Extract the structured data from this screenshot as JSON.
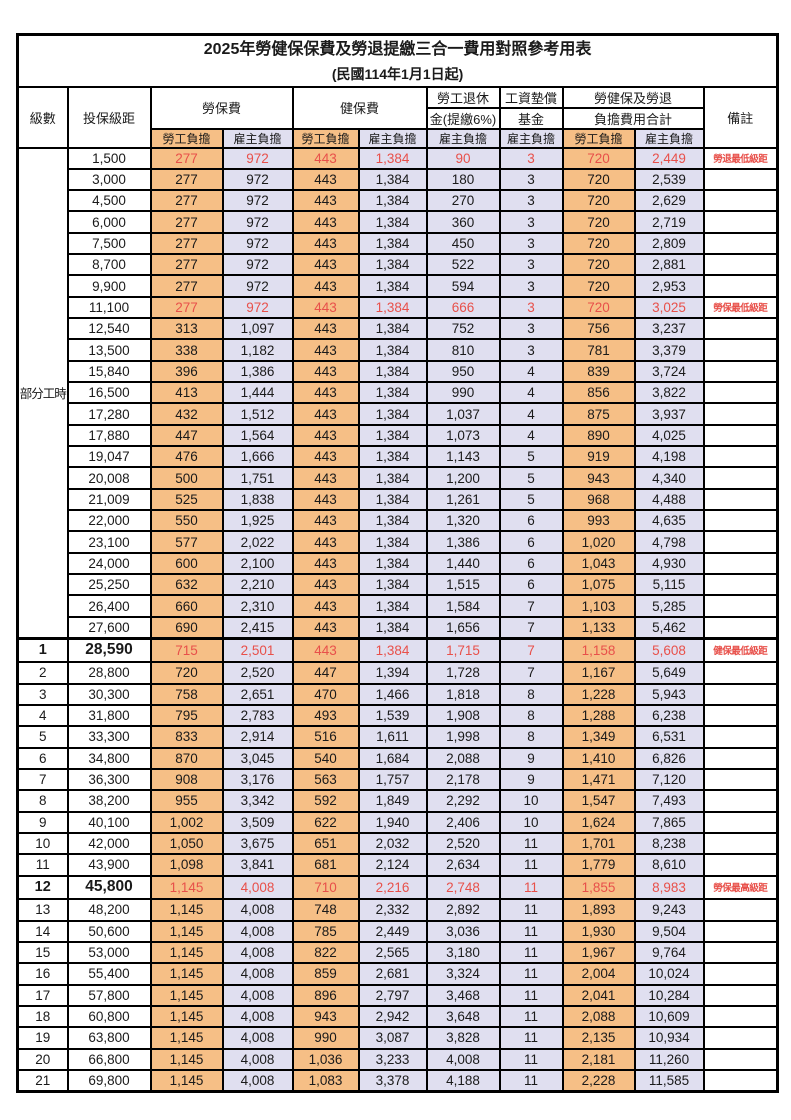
{
  "page": {
    "title": "2025年勞健保保費及勞退提繳三合一費用對照參考用表",
    "subtitle": "(民國114年1月1日起)"
  },
  "header": {
    "level": "級數",
    "bracket": "投保級距",
    "labor_insurance": "勞保費",
    "health_insurance": "健保費",
    "pension_line1": "勞工退休",
    "pension_line2": "金(提繳6%)",
    "wage_fund_line1": "工資墊償",
    "wage_fund_line2": "基金",
    "total_line1": "勞健保及勞退",
    "total_line2": "負擔費用合計",
    "remarks": "備註",
    "employee_share": "勞工負擔",
    "employer_share": "雇主負擔"
  },
  "part_time_label": "部分工時",
  "part_time_rows": [
    {
      "bracket": "1,500",
      "values": [
        "277",
        "972",
        "443",
        "1,384",
        "90",
        "3",
        "720",
        "2,449"
      ],
      "note": "勞退最低級距",
      "highlight": true
    },
    {
      "bracket": "3,000",
      "values": [
        "277",
        "972",
        "443",
        "1,384",
        "180",
        "3",
        "720",
        "2,539"
      ],
      "note": ""
    },
    {
      "bracket": "4,500",
      "values": [
        "277",
        "972",
        "443",
        "1,384",
        "270",
        "3",
        "720",
        "2,629"
      ],
      "note": ""
    },
    {
      "bracket": "6,000",
      "values": [
        "277",
        "972",
        "443",
        "1,384",
        "360",
        "3",
        "720",
        "2,719"
      ],
      "note": ""
    },
    {
      "bracket": "7,500",
      "values": [
        "277",
        "972",
        "443",
        "1,384",
        "450",
        "3",
        "720",
        "2,809"
      ],
      "note": ""
    },
    {
      "bracket": "8,700",
      "values": [
        "277",
        "972",
        "443",
        "1,384",
        "522",
        "3",
        "720",
        "2,881"
      ],
      "note": ""
    },
    {
      "bracket": "9,900",
      "values": [
        "277",
        "972",
        "443",
        "1,384",
        "594",
        "3",
        "720",
        "2,953"
      ],
      "note": ""
    },
    {
      "bracket": "11,100",
      "values": [
        "277",
        "972",
        "443",
        "1,384",
        "666",
        "3",
        "720",
        "3,025"
      ],
      "note": "勞保最低級距",
      "highlight": true
    },
    {
      "bracket": "12,540",
      "values": [
        "313",
        "1,097",
        "443",
        "1,384",
        "752",
        "3",
        "756",
        "3,237"
      ],
      "note": ""
    },
    {
      "bracket": "13,500",
      "values": [
        "338",
        "1,182",
        "443",
        "1,384",
        "810",
        "3",
        "781",
        "3,379"
      ],
      "note": ""
    },
    {
      "bracket": "15,840",
      "values": [
        "396",
        "1,386",
        "443",
        "1,384",
        "950",
        "4",
        "839",
        "3,724"
      ],
      "note": ""
    },
    {
      "bracket": "16,500",
      "values": [
        "413",
        "1,444",
        "443",
        "1,384",
        "990",
        "4",
        "856",
        "3,822"
      ],
      "note": ""
    },
    {
      "bracket": "17,280",
      "values": [
        "432",
        "1,512",
        "443",
        "1,384",
        "1,037",
        "4",
        "875",
        "3,937"
      ],
      "note": ""
    },
    {
      "bracket": "17,880",
      "values": [
        "447",
        "1,564",
        "443",
        "1,384",
        "1,073",
        "4",
        "890",
        "4,025"
      ],
      "note": ""
    },
    {
      "bracket": "19,047",
      "values": [
        "476",
        "1,666",
        "443",
        "1,384",
        "1,143",
        "5",
        "919",
        "4,198"
      ],
      "note": ""
    },
    {
      "bracket": "20,008",
      "values": [
        "500",
        "1,751",
        "443",
        "1,384",
        "1,200",
        "5",
        "943",
        "4,340"
      ],
      "note": ""
    },
    {
      "bracket": "21,009",
      "values": [
        "525",
        "1,838",
        "443",
        "1,384",
        "1,261",
        "5",
        "968",
        "4,488"
      ],
      "note": ""
    },
    {
      "bracket": "22,000",
      "values": [
        "550",
        "1,925",
        "443",
        "1,384",
        "1,320",
        "6",
        "993",
        "4,635"
      ],
      "note": ""
    },
    {
      "bracket": "23,100",
      "values": [
        "577",
        "2,022",
        "443",
        "1,384",
        "1,386",
        "6",
        "1,020",
        "4,798"
      ],
      "note": ""
    },
    {
      "bracket": "24,000",
      "values": [
        "600",
        "2,100",
        "443",
        "1,384",
        "1,440",
        "6",
        "1,043",
        "4,930"
      ],
      "note": ""
    },
    {
      "bracket": "25,250",
      "values": [
        "632",
        "2,210",
        "443",
        "1,384",
        "1,515",
        "6",
        "1,075",
        "5,115"
      ],
      "note": ""
    },
    {
      "bracket": "26,400",
      "values": [
        "660",
        "2,310",
        "443",
        "1,384",
        "1,584",
        "7",
        "1,103",
        "5,285"
      ],
      "note": ""
    },
    {
      "bracket": "27,600",
      "values": [
        "690",
        "2,415",
        "443",
        "1,384",
        "1,656",
        "7",
        "1,133",
        "5,462"
      ],
      "note": ""
    }
  ],
  "numbered_rows": [
    {
      "level": "1",
      "bracket": "28,590",
      "values": [
        "715",
        "2,501",
        "443",
        "1,384",
        "1,715",
        "7",
        "1,158",
        "5,608"
      ],
      "note": "健保最低級距",
      "highlight": true,
      "bold": true
    },
    {
      "level": "2",
      "bracket": "28,800",
      "values": [
        "720",
        "2,520",
        "447",
        "1,394",
        "1,728",
        "7",
        "1,167",
        "5,649"
      ],
      "note": ""
    },
    {
      "level": "3",
      "bracket": "30,300",
      "values": [
        "758",
        "2,651",
        "470",
        "1,466",
        "1,818",
        "8",
        "1,228",
        "5,943"
      ],
      "note": ""
    },
    {
      "level": "4",
      "bracket": "31,800",
      "values": [
        "795",
        "2,783",
        "493",
        "1,539",
        "1,908",
        "8",
        "1,288",
        "6,238"
      ],
      "note": ""
    },
    {
      "level": "5",
      "bracket": "33,300",
      "values": [
        "833",
        "2,914",
        "516",
        "1,611",
        "1,998",
        "8",
        "1,349",
        "6,531"
      ],
      "note": ""
    },
    {
      "level": "6",
      "bracket": "34,800",
      "values": [
        "870",
        "3,045",
        "540",
        "1,684",
        "2,088",
        "9",
        "1,410",
        "6,826"
      ],
      "note": ""
    },
    {
      "level": "7",
      "bracket": "36,300",
      "values": [
        "908",
        "3,176",
        "563",
        "1,757",
        "2,178",
        "9",
        "1,471",
        "7,120"
      ],
      "note": ""
    },
    {
      "level": "8",
      "bracket": "38,200",
      "values": [
        "955",
        "3,342",
        "592",
        "1,849",
        "2,292",
        "10",
        "1,547",
        "7,493"
      ],
      "note": ""
    },
    {
      "level": "9",
      "bracket": "40,100",
      "values": [
        "1,002",
        "3,509",
        "622",
        "1,940",
        "2,406",
        "10",
        "1,624",
        "7,865"
      ],
      "note": ""
    },
    {
      "level": "10",
      "bracket": "42,000",
      "values": [
        "1,050",
        "3,675",
        "651",
        "2,032",
        "2,520",
        "11",
        "1,701",
        "8,238"
      ],
      "note": ""
    },
    {
      "level": "11",
      "bracket": "43,900",
      "values": [
        "1,098",
        "3,841",
        "681",
        "2,124",
        "2,634",
        "11",
        "1,779",
        "8,610"
      ],
      "note": ""
    },
    {
      "level": "12",
      "bracket": "45,800",
      "values": [
        "1,145",
        "4,008",
        "710",
        "2,216",
        "2,748",
        "11",
        "1,855",
        "8,983"
      ],
      "note": "勞保最高級距",
      "highlight": true,
      "bold": true
    },
    {
      "level": "13",
      "bracket": "48,200",
      "values": [
        "1,145",
        "4,008",
        "748",
        "2,332",
        "2,892",
        "11",
        "1,893",
        "9,243"
      ],
      "note": ""
    },
    {
      "level": "14",
      "bracket": "50,600",
      "values": [
        "1,145",
        "4,008",
        "785",
        "2,449",
        "3,036",
        "11",
        "1,930",
        "9,504"
      ],
      "note": ""
    },
    {
      "level": "15",
      "bracket": "53,000",
      "values": [
        "1,145",
        "4,008",
        "822",
        "2,565",
        "3,180",
        "11",
        "1,967",
        "9,764"
      ],
      "note": ""
    },
    {
      "level": "16",
      "bracket": "55,400",
      "values": [
        "1,145",
        "4,008",
        "859",
        "2,681",
        "3,324",
        "11",
        "2,004",
        "10,024"
      ],
      "note": ""
    },
    {
      "level": "17",
      "bracket": "57,800",
      "values": [
        "1,145",
        "4,008",
        "896",
        "2,797",
        "3,468",
        "11",
        "2,041",
        "10,284"
      ],
      "note": ""
    },
    {
      "level": "18",
      "bracket": "60,800",
      "values": [
        "1,145",
        "4,008",
        "943",
        "2,942",
        "3,648",
        "11",
        "2,088",
        "10,609"
      ],
      "note": ""
    },
    {
      "level": "19",
      "bracket": "63,800",
      "values": [
        "1,145",
        "4,008",
        "990",
        "3,087",
        "3,828",
        "11",
        "2,135",
        "10,934"
      ],
      "note": ""
    },
    {
      "level": "20",
      "bracket": "66,800",
      "values": [
        "1,145",
        "4,008",
        "1,036",
        "3,233",
        "4,008",
        "11",
        "2,181",
        "11,260"
      ],
      "note": ""
    },
    {
      "level": "21",
      "bracket": "69,800",
      "values": [
        "1,145",
        "4,008",
        "1,083",
        "3,378",
        "4,188",
        "11",
        "2,228",
        "11,585"
      ],
      "note": ""
    }
  ],
  "colors": {
    "employee_bg": "#F6BF86",
    "employer_bg": "#E0DFF0",
    "highlight_text": "#E8504A",
    "border": "#000000"
  }
}
